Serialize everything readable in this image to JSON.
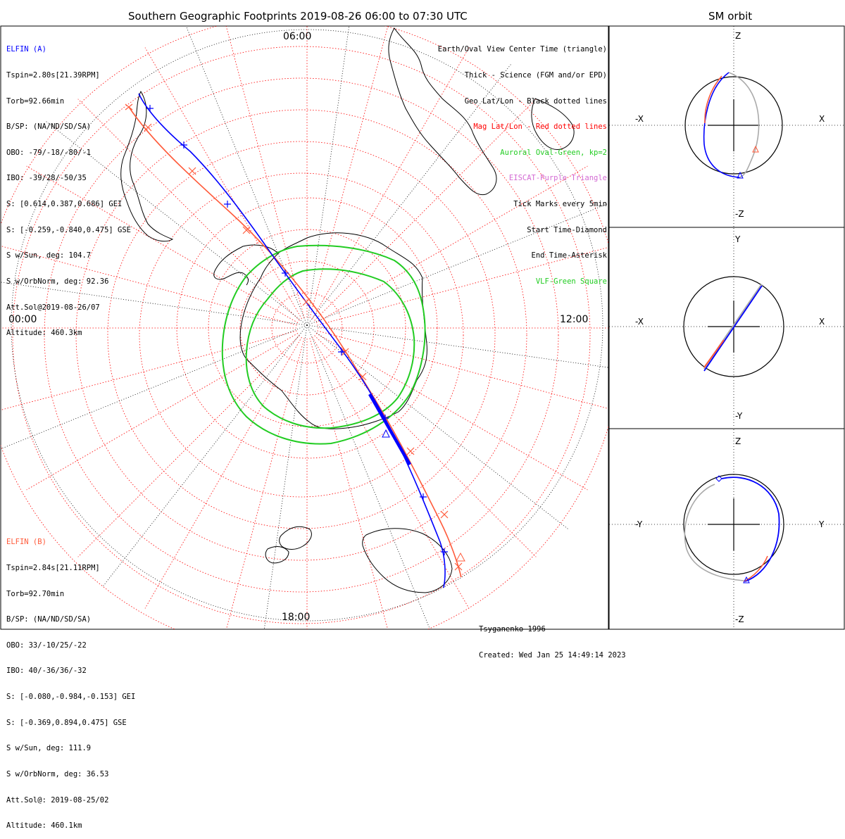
{
  "main": {
    "title": "Southern Geographic Footprints 2019-08-26 06:00 to 07:30 UTC",
    "hour_labels": {
      "top": "06:00",
      "left": "00:00",
      "right": "12:00",
      "bottom": "18:00"
    },
    "sat_a": {
      "name": "ELFIN (A)",
      "color": "#0000ff",
      "lines": [
        "Tspin=2.80s[21.39RPM]",
        "Torb=92.66min",
        "B/SP: (NA/ND/SD/SA)",
        "OBO: -79/-18/-80/-1",
        "IBO: -39/28/-50/35",
        "S: [0.614,0.387,0.686] GEI",
        "S: [-0.259,-0.840,0.475] GSE",
        "S w/Sun, deg: 104.7",
        "S w/OrbNorm, deg: 92.36",
        "Att.Sol@2019-08-26/07",
        "Altitude: 460.3km"
      ]
    },
    "sat_b": {
      "name": "ELFIN (B)",
      "color": "#ff5a3a",
      "lines": [
        "Tspin=2.84s[21.11RPM]",
        "Torb=92.70min",
        "B/SP: (NA/ND/SD/SA)",
        "OBO: 33/-10/25/-22",
        "IBO: 40/-36/36/-32",
        "S: [-0.080,-0.984,-0.153] GEI",
        "S: [-0.369,0.894,0.475] GSE",
        "S w/Sun, deg: 111.9",
        "S w/OrbNorm, deg: 36.53",
        "Att.Sol@: 2019-08-25/02",
        "Altitude: 460.1km"
      ]
    },
    "legend": [
      {
        "text": "Earth/Oval View Center Time (triangle)",
        "color": "#000000"
      },
      {
        "text": "Thick - Science (FGM and/or EPD)",
        "color": "#000000"
      },
      {
        "text": "Geo Lat/Lon - Black dotted lines",
        "color": "#000000"
      },
      {
        "text": "Mag Lat/Lon - Red dotted lines",
        "color": "#ff0000"
      },
      {
        "text": "Auroral Oval-Green, kp=2",
        "color": "#22cc22"
      },
      {
        "text": "EISCAT-Purple Triangle",
        "color": "#d36ad3"
      },
      {
        "text": "Tick Marks every 5min",
        "color": "#000000"
      },
      {
        "text": "Start Time-Diamond",
        "color": "#000000"
      },
      {
        "text": "End Time-Asterisk",
        "color": "#000000"
      },
      {
        "text": "VLF-Green Square",
        "color": "#22cc22"
      }
    ],
    "footer": {
      "model": "Tsyganenko-1996",
      "created": "Created: Wed Jan 25 14:49:14 2023"
    }
  },
  "side": {
    "title": "SM orbit",
    "panels": [
      {
        "top": "Z",
        "bottom": "-Z",
        "left": "-X",
        "right": "X"
      },
      {
        "top": "Y",
        "bottom": "-Y",
        "left": "-X",
        "right": "X"
      },
      {
        "top": "Z",
        "bottom": "-Z",
        "left": "-Y",
        "right": "Y"
      }
    ]
  },
  "colors": {
    "elfin_a": "#0000ff",
    "elfin_b": "#ff5a3a",
    "auroral_oval": "#22cc22",
    "mag_grid": "#ff0000",
    "geo_grid": "#000000",
    "orbit_back": "#aaaaaa"
  }
}
